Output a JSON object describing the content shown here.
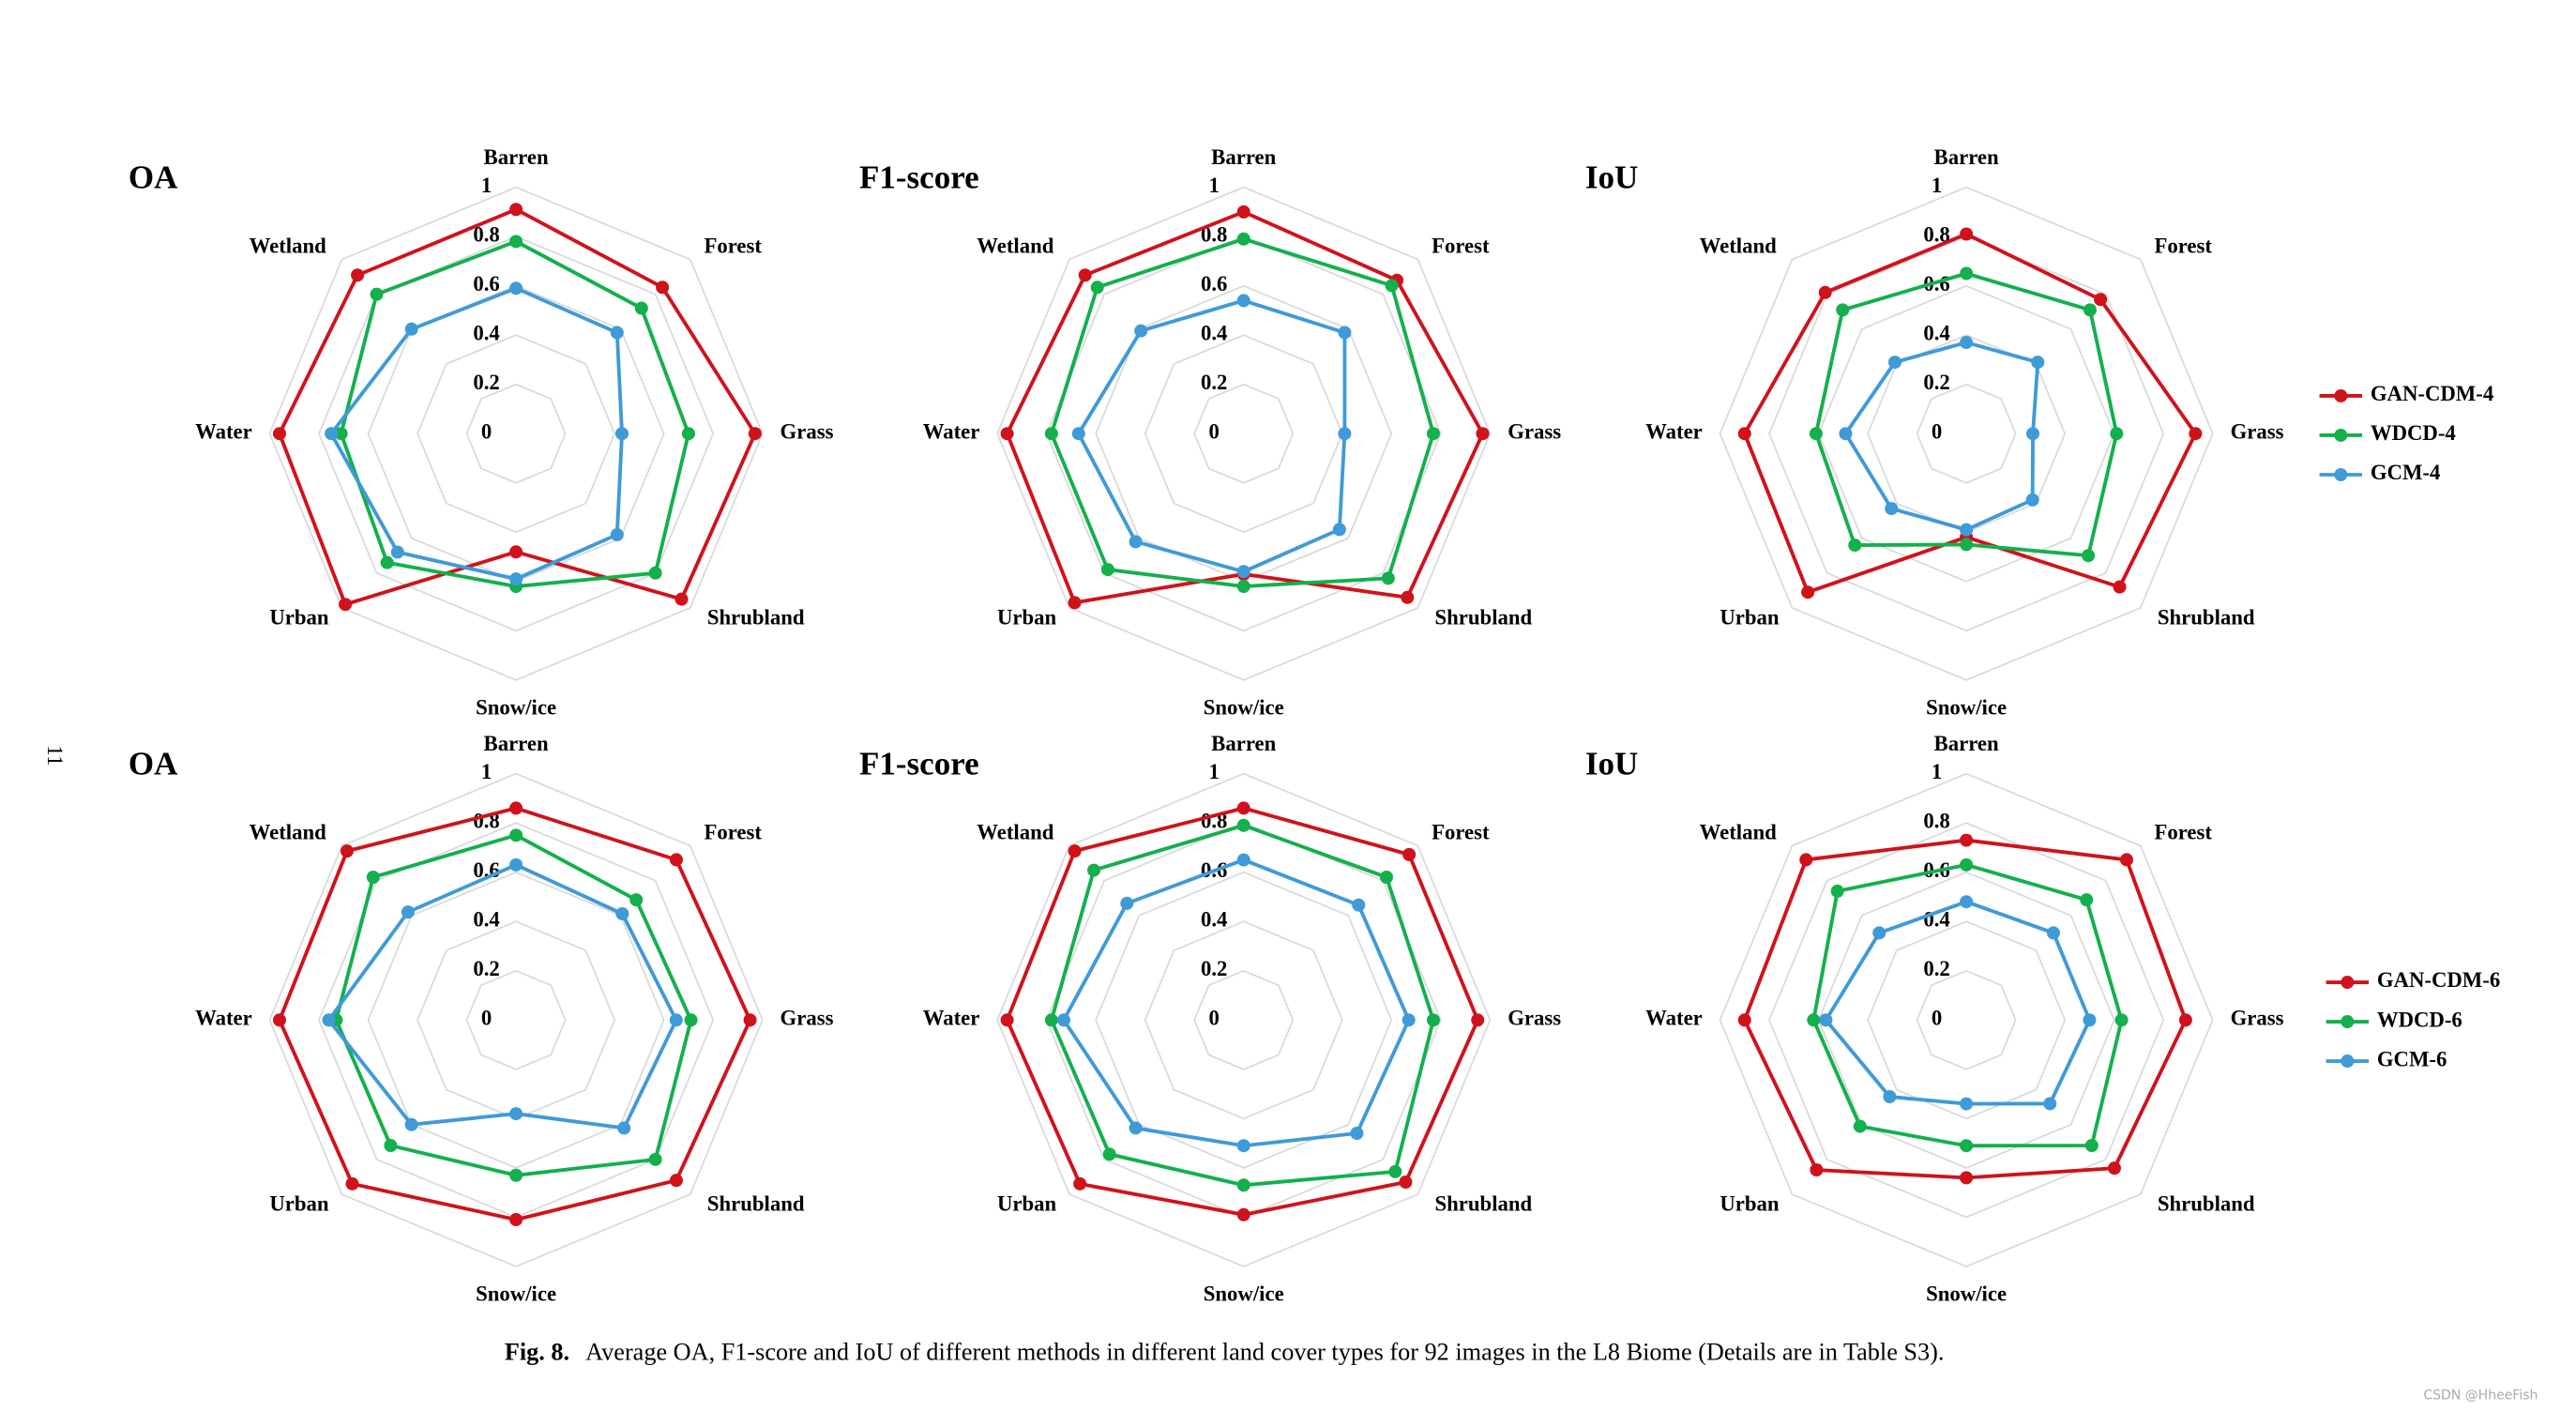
{
  "chart_data": [
    {
      "type": "radar",
      "title": "OA",
      "categories": [
        "Barren",
        "Forest",
        "Grass",
        "Shrubland",
        "Snow/ice",
        "Urban",
        "Water",
        "Wetland"
      ],
      "ylim": [
        0,
        1
      ],
      "yticks": [
        0,
        0.2,
        0.4,
        0.6,
        0.8,
        1
      ],
      "series": [
        {
          "color": "#d0121b",
          "values": [
            0.91,
            0.84,
            0.97,
            0.95,
            0.48,
            0.98,
            0.96,
            0.91
          ]
        },
        {
          "color": "#13b04b",
          "values": [
            0.78,
            0.72,
            0.7,
            0.8,
            0.62,
            0.74,
            0.71,
            0.8
          ]
        },
        {
          "color": "#3f9ad8",
          "values": [
            0.59,
            0.58,
            0.43,
            0.58,
            0.59,
            0.68,
            0.75,
            0.6
          ]
        }
      ]
    },
    {
      "type": "radar",
      "title": "F1-score",
      "categories": [
        "Barren",
        "Forest",
        "Grass",
        "Shrubland",
        "Snow/ice",
        "Urban",
        "Water",
        "Wetland"
      ],
      "ylim": [
        0,
        1
      ],
      "yticks": [
        0,
        0.2,
        0.4,
        0.6,
        0.8,
        1
      ],
      "series": [
        {
          "color": "#d0121b",
          "values": [
            0.9,
            0.88,
            0.97,
            0.94,
            0.57,
            0.97,
            0.96,
            0.91
          ]
        },
        {
          "color": "#13b04b",
          "values": [
            0.79,
            0.85,
            0.77,
            0.83,
            0.62,
            0.78,
            0.78,
            0.84
          ]
        },
        {
          "color": "#3f9ad8",
          "values": [
            0.54,
            0.58,
            0.41,
            0.55,
            0.56,
            0.62,
            0.67,
            0.59
          ]
        }
      ]
    },
    {
      "type": "radar",
      "title": "IoU",
      "categories": [
        "Barren",
        "Forest",
        "Grass",
        "Shrubland",
        "Snow/ice",
        "Urban",
        "Water",
        "Wetland"
      ],
      "ylim": [
        0,
        1
      ],
      "yticks": [
        0,
        0.2,
        0.4,
        0.6,
        0.8,
        1
      ],
      "legend": "right",
      "series": [
        {
          "name": "GAN-CDM-4",
          "color": "#d0121b",
          "values": [
            0.81,
            0.77,
            0.93,
            0.88,
            0.42,
            0.91,
            0.9,
            0.81
          ]
        },
        {
          "name": "WDCD-4",
          "color": "#13b04b",
          "values": [
            0.65,
            0.71,
            0.61,
            0.7,
            0.45,
            0.64,
            0.61,
            0.71
          ]
        },
        {
          "name": "GCM-4",
          "color": "#3f9ad8",
          "values": [
            0.37,
            0.41,
            0.27,
            0.38,
            0.39,
            0.43,
            0.49,
            0.41
          ]
        }
      ]
    },
    {
      "type": "radar",
      "title": "OA",
      "categories": [
        "Barren",
        "Forest",
        "Grass",
        "Shrubland",
        "Snow/ice",
        "Urban",
        "Water",
        "Wetland"
      ],
      "ylim": [
        0,
        1
      ],
      "yticks": [
        0,
        0.2,
        0.4,
        0.6,
        0.8,
        1
      ],
      "series": [
        {
          "color": "#d0121b",
          "values": [
            0.86,
            0.92,
            0.95,
            0.92,
            0.81,
            0.94,
            0.96,
            0.97
          ]
        },
        {
          "color": "#13b04b",
          "values": [
            0.75,
            0.69,
            0.71,
            0.8,
            0.63,
            0.72,
            0.73,
            0.82
          ]
        },
        {
          "color": "#3f9ad8",
          "values": [
            0.63,
            0.61,
            0.65,
            0.62,
            0.38,
            0.6,
            0.76,
            0.62
          ]
        }
      ]
    },
    {
      "type": "radar",
      "title": "F1-score",
      "categories": [
        "Barren",
        "Forest",
        "Grass",
        "Shrubland",
        "Snow/ice",
        "Urban",
        "Water",
        "Wetland"
      ],
      "ylim": [
        0,
        1
      ],
      "yticks": [
        0,
        0.2,
        0.4,
        0.6,
        0.8,
        1
      ],
      "series": [
        {
          "color": "#d0121b",
          "values": [
            0.86,
            0.95,
            0.95,
            0.93,
            0.79,
            0.94,
            0.96,
            0.97
          ]
        },
        {
          "color": "#13b04b",
          "values": [
            0.79,
            0.82,
            0.77,
            0.87,
            0.67,
            0.77,
            0.78,
            0.86
          ]
        },
        {
          "color": "#3f9ad8",
          "values": [
            0.65,
            0.66,
            0.67,
            0.65,
            0.51,
            0.62,
            0.73,
            0.67
          ]
        }
      ]
    },
    {
      "type": "radar",
      "title": "IoU",
      "categories": [
        "Barren",
        "Forest",
        "Grass",
        "Shrubland",
        "Snow/ice",
        "Urban",
        "Water",
        "Wetland"
      ],
      "ylim": [
        0,
        1
      ],
      "yticks": [
        0,
        0.2,
        0.4,
        0.6,
        0.8,
        1
      ],
      "legend": "right",
      "series": [
        {
          "name": "GAN-CDM-6",
          "color": "#d0121b",
          "values": [
            0.73,
            0.92,
            0.89,
            0.85,
            0.64,
            0.86,
            0.9,
            0.92
          ]
        },
        {
          "name": "WDCD-6",
          "color": "#13b04b",
          "values": [
            0.63,
            0.69,
            0.63,
            0.72,
            0.51,
            0.61,
            0.62,
            0.74
          ]
        },
        {
          "name": "GCM-6",
          "color": "#3f9ad8",
          "values": [
            0.48,
            0.5,
            0.5,
            0.48,
            0.34,
            0.44,
            0.57,
            0.5
          ]
        }
      ]
    }
  ],
  "page_number": "11",
  "caption": {
    "label": "Fig. 8.",
    "text": "Average OA, F1-score and IoU of different methods in different land cover types for 92 images in the L8 Biome (Details are in Table S3)."
  },
  "watermark": "CSDN @HheeFish"
}
